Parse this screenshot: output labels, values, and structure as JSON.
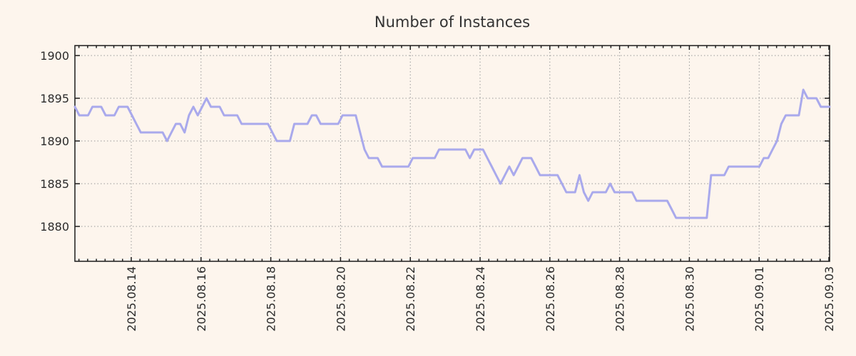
{
  "chart_data": {
    "type": "line",
    "title": "Number of Instances",
    "xlabel": "",
    "ylabel": "",
    "legend": "none",
    "grid": true,
    "grid_style": "dotted",
    "background_color": "#fdf5ed",
    "line_color": "#a9a9ec",
    "grid_color": "#999999",
    "axis_color": "#1c1c1c",
    "text_color": "#2b2b2b",
    "y_ticks": [
      1880,
      1885,
      1890,
      1895,
      1900
    ],
    "ylim": [
      1875.8,
      1901.2
    ],
    "x_tick_labels": [
      "2025.08.14",
      "2025.08.16",
      "2025.08.18",
      "2025.08.20",
      "2025.08.22",
      "2025.08.24",
      "2025.08.26",
      "2025.08.28",
      "2025.08.30",
      "2025.09.01",
      "2025.09.03"
    ],
    "x_tick_label_rotation": -90,
    "x_minor_ticks_per_major": 8,
    "x_start": "2025.08.12 12:00",
    "x_step_hours": 3,
    "series": [
      {
        "name": "instances",
        "values": [
          1894,
          1893,
          1893,
          1893,
          1894,
          1894,
          1894,
          1893,
          1893,
          1893,
          1894,
          1894,
          1894,
          1893,
          1892,
          1891,
          1891,
          1891,
          1891,
          1891,
          1891,
          1890,
          1891,
          1892,
          1892,
          1891,
          1893,
          1894,
          1893,
          1894,
          1895,
          1894,
          1894,
          1894,
          1893,
          1893,
          1893,
          1893,
          1892,
          1892,
          1892,
          1892,
          1892,
          1892,
          1892,
          1891,
          1890,
          1890,
          1890,
          1890,
          1892,
          1892,
          1892,
          1892,
          1893,
          1893,
          1892,
          1892,
          1892,
          1892,
          1892,
          1893,
          1893,
          1893,
          1893,
          1891,
          1889,
          1888,
          1888,
          1888,
          1887,
          1887,
          1887,
          1887,
          1887,
          1887,
          1887,
          1888,
          1888,
          1888,
          1888,
          1888,
          1888,
          1889,
          1889,
          1889,
          1889,
          1889,
          1889,
          1889,
          1888,
          1889,
          1889,
          1889,
          1888,
          1887,
          1886,
          1885,
          1886,
          1887,
          1886,
          1887,
          1888,
          1888,
          1888,
          1887,
          1886,
          1886,
          1886,
          1886,
          1886,
          1885,
          1884,
          1884,
          1884,
          1886,
          1884,
          1883,
          1884,
          1884,
          1884,
          1884,
          1885,
          1884,
          1884,
          1884,
          1884,
          1884,
          1883,
          1883,
          1883,
          1883,
          1883,
          1883,
          1883,
          1883,
          1882,
          1881,
          1881,
          1881,
          1881,
          1881,
          1881,
          1881,
          1881,
          1886,
          1886,
          1886,
          1886,
          1887,
          1887,
          1887,
          1887,
          1887,
          1887,
          1887,
          1887,
          1888,
          1888,
          1889,
          1890,
          1892,
          1893,
          1893,
          1893,
          1893,
          1896,
          1895,
          1895,
          1895,
          1894,
          1894,
          1894
        ]
      }
    ]
  }
}
